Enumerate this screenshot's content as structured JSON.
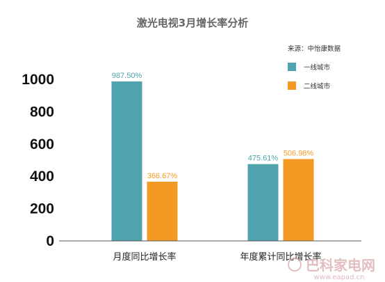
{
  "source": "来源：中怡康数据",
  "watermark": {
    "text": "巴科家电网",
    "url": "www.eapad.cn"
  },
  "chart_data": {
    "type": "bar",
    "title": "激光电视3月增长率分析",
    "categories": [
      "月度同比增长率",
      "年度累计同比增长率"
    ],
    "series": [
      {
        "name": "一线城市",
        "values": [
          987.5,
          475.61
        ],
        "labels": [
          "987.50%",
          "475.61%"
        ],
        "color": "#4FA3AE"
      },
      {
        "name": "二线城市",
        "values": [
          366.67,
          506.98
        ],
        "labels": [
          "366.67%",
          "506.98%"
        ],
        "color": "#F39A24"
      }
    ],
    "yticks": [
      0,
      200,
      400,
      600,
      800,
      1000
    ],
    "ylim": [
      0,
      1000
    ],
    "legend_position": "top-right",
    "grid": false
  }
}
